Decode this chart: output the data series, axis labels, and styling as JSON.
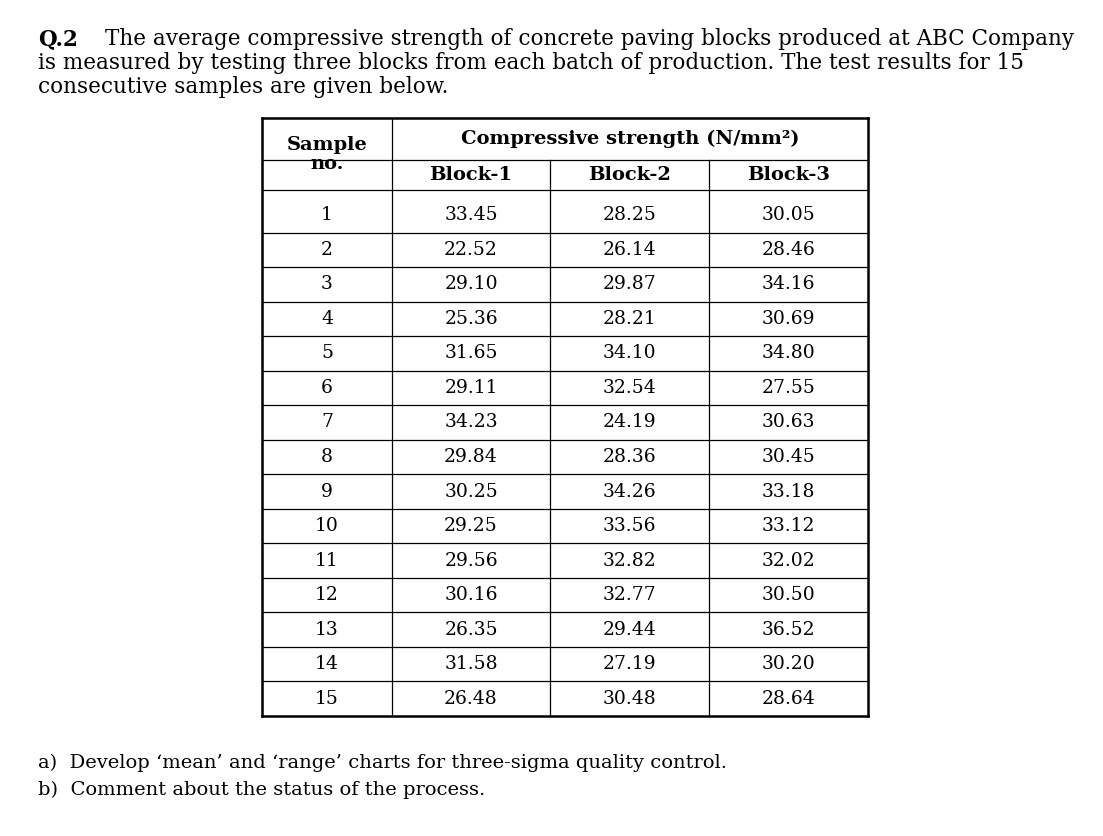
{
  "title_bold": "Q.2",
  "title_line1": "The average compressive strength of concrete paving blocks produced at ABC Company",
  "title_line2": "is measured by testing three blocks from each batch of production. The test results for 15",
  "title_line3": "consecutive samples are given below.",
  "col_header_1a": "Sample",
  "col_header_1b": "no.",
  "col_header_2": "Compressive strength (N/mm²)",
  "sub_headers": [
    "Block-1",
    "Block-2",
    "Block-3"
  ],
  "data": [
    [
      1,
      33.45,
      28.25,
      30.05
    ],
    [
      2,
      22.52,
      26.14,
      28.46
    ],
    [
      3,
      29.1,
      29.87,
      34.16
    ],
    [
      4,
      25.36,
      28.21,
      30.69
    ],
    [
      5,
      31.65,
      34.1,
      34.8
    ],
    [
      6,
      29.11,
      32.54,
      27.55
    ],
    [
      7,
      34.23,
      24.19,
      30.63
    ],
    [
      8,
      29.84,
      28.36,
      30.45
    ],
    [
      9,
      30.25,
      34.26,
      33.18
    ],
    [
      10,
      29.25,
      33.56,
      33.12
    ],
    [
      11,
      29.56,
      32.82,
      32.02
    ],
    [
      12,
      30.16,
      32.77,
      30.5
    ],
    [
      13,
      26.35,
      29.44,
      36.52
    ],
    [
      14,
      31.58,
      27.19,
      30.2
    ],
    [
      15,
      26.48,
      30.48,
      28.64
    ]
  ],
  "footer_a": "a)  Develop ‘mean’ and ‘range’ charts for three-sigma quality control.",
  "footer_b": "b)  Comment about the status of the process.",
  "bg_color": "#ffffff",
  "text_color": "#000000",
  "font_size_title": 15.5,
  "font_size_bold": "Q.2",
  "font_size_table_header": 14,
  "font_size_table_data": 13.5,
  "font_size_footer": 14
}
